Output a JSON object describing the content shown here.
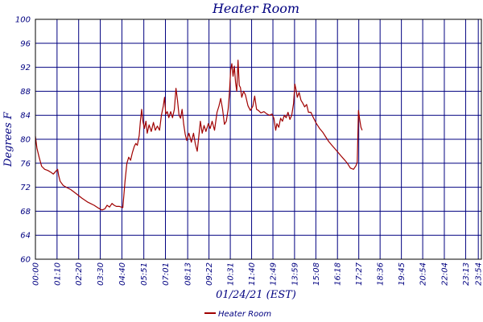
{
  "chart_data": {
    "type": "line",
    "title": "Heater Room",
    "xlabel": "01/24/21 (EST)",
    "ylabel": "Degrees F",
    "ylim": [
      60,
      100
    ],
    "yticks": [
      "60",
      "64",
      "68",
      "72",
      "76",
      "80",
      "84",
      "88",
      "92",
      "96",
      "100"
    ],
    "xlim_minutes": [
      0,
      1444
    ],
    "xticks": [
      {
        "label": "00:00",
        "minute": 0
      },
      {
        "label": "01:10",
        "minute": 70
      },
      {
        "label": "02:20",
        "minute": 140
      },
      {
        "label": "03:30",
        "minute": 210
      },
      {
        "label": "04:40",
        "minute": 280
      },
      {
        "label": "05:51",
        "minute": 351
      },
      {
        "label": "07:01",
        "minute": 421
      },
      {
        "label": "08:13",
        "minute": 493
      },
      {
        "label": "09:22",
        "minute": 562
      },
      {
        "label": "10:31",
        "minute": 631
      },
      {
        "label": "11:40",
        "minute": 700
      },
      {
        "label": "12:49",
        "minute": 769
      },
      {
        "label": "13:59",
        "minute": 839
      },
      {
        "label": "15:08",
        "minute": 908
      },
      {
        "label": "16:18",
        "minute": 978
      },
      {
        "label": "17:27",
        "minute": 1047
      },
      {
        "label": "18:36",
        "minute": 1116
      },
      {
        "label": "19:45",
        "minute": 1185
      },
      {
        "label": "20:54",
        "minute": 1254
      },
      {
        "label": "22:04",
        "minute": 1324
      },
      {
        "label": "23:13",
        "minute": 1393
      },
      {
        "label": "23:54",
        "minute": 1434
      }
    ],
    "grid": true,
    "legend": "bottom",
    "series": [
      {
        "name": "Heater Room",
        "color": "#a00000",
        "points": [
          [
            0,
            80.5
          ],
          [
            5,
            78.5
          ],
          [
            12,
            77
          ],
          [
            20,
            75.5
          ],
          [
            30,
            75
          ],
          [
            40,
            74.8
          ],
          [
            50,
            74.5
          ],
          [
            58,
            74.2
          ],
          [
            65,
            74.6
          ],
          [
            72,
            75
          ],
          [
            75,
            74
          ],
          [
            80,
            73
          ],
          [
            90,
            72.3
          ],
          [
            100,
            72
          ],
          [
            115,
            71.6
          ],
          [
            130,
            71
          ],
          [
            150,
            70.2
          ],
          [
            170,
            69.5
          ],
          [
            190,
            69
          ],
          [
            205,
            68.5
          ],
          [
            215,
            68.2
          ],
          [
            225,
            68.4
          ],
          [
            232,
            69
          ],
          [
            240,
            68.7
          ],
          [
            248,
            69.3
          ],
          [
            255,
            69
          ],
          [
            262,
            68.8
          ],
          [
            272,
            68.8
          ],
          [
            283,
            68.6
          ],
          [
            290,
            73
          ],
          [
            296,
            76
          ],
          [
            302,
            77
          ],
          [
            308,
            76.5
          ],
          [
            314,
            77.8
          ],
          [
            320,
            78.8
          ],
          [
            325,
            79.3
          ],
          [
            330,
            79
          ],
          [
            336,
            80.6
          ],
          [
            340,
            83
          ],
          [
            344,
            85
          ],
          [
            348,
            83
          ],
          [
            353,
            81.8
          ],
          [
            358,
            83
          ],
          [
            362,
            81
          ],
          [
            368,
            82.4
          ],
          [
            375,
            81.3
          ],
          [
            382,
            82.8
          ],
          [
            388,
            81.5
          ],
          [
            395,
            82.2
          ],
          [
            402,
            81.5
          ],
          [
            408,
            84
          ],
          [
            414,
            85.5
          ],
          [
            418,
            87
          ],
          [
            422,
            84.2
          ],
          [
            427,
            84.6
          ],
          [
            432,
            83.6
          ],
          [
            438,
            84.6
          ],
          [
            444,
            83.6
          ],
          [
            450,
            85
          ],
          [
            455,
            88.5
          ],
          [
            460,
            86.5
          ],
          [
            465,
            84
          ],
          [
            470,
            83.5
          ],
          [
            475,
            85
          ],
          [
            480,
            82.5
          ],
          [
            485,
            80.8
          ],
          [
            490,
            79.8
          ],
          [
            497,
            81
          ],
          [
            505,
            79.5
          ],
          [
            512,
            81
          ],
          [
            518,
            79.2
          ],
          [
            524,
            78
          ],
          [
            528,
            80
          ],
          [
            534,
            83
          ],
          [
            540,
            81
          ],
          [
            546,
            82.3
          ],
          [
            552,
            81.3
          ],
          [
            560,
            82.6
          ],
          [
            566,
            81.8
          ],
          [
            572,
            83
          ],
          [
            580,
            81.5
          ],
          [
            588,
            84.5
          ],
          [
            594,
            85.5
          ],
          [
            600,
            86.8
          ],
          [
            606,
            85
          ],
          [
            612,
            82.5
          ],
          [
            618,
            83
          ],
          [
            624,
            85
          ],
          [
            628,
            87.5
          ],
          [
            632,
            91.5
          ],
          [
            636,
            92.6
          ],
          [
            640,
            90.5
          ],
          [
            644,
            92.2
          ],
          [
            648,
            89.5
          ],
          [
            652,
            88
          ],
          [
            656,
            93.2
          ],
          [
            660,
            89
          ],
          [
            664,
            88.6
          ],
          [
            668,
            87
          ],
          [
            674,
            88
          ],
          [
            680,
            87.4
          ],
          [
            688,
            85.6
          ],
          [
            696,
            84.8
          ],
          [
            704,
            85.5
          ],
          [
            710,
            87.2
          ],
          [
            716,
            85
          ],
          [
            722,
            84.8
          ],
          [
            730,
            84.4
          ],
          [
            740,
            84.6
          ],
          [
            750,
            84.2
          ],
          [
            758,
            84
          ],
          [
            766,
            84.2
          ],
          [
            772,
            83.5
          ],
          [
            778,
            81.5
          ],
          [
            782,
            82.6
          ],
          [
            788,
            82
          ],
          [
            794,
            83.5
          ],
          [
            800,
            83
          ],
          [
            806,
            84
          ],
          [
            812,
            83.6
          ],
          [
            818,
            84.5
          ],
          [
            824,
            83.3
          ],
          [
            830,
            84
          ],
          [
            836,
            86
          ],
          [
            840,
            89.2
          ],
          [
            844,
            88.2
          ],
          [
            848,
            87
          ],
          [
            854,
            87.8
          ],
          [
            860,
            86.5
          ],
          [
            866,
            86
          ],
          [
            872,
            85.4
          ],
          [
            878,
            85.8
          ],
          [
            884,
            84.5
          ],
          [
            892,
            84.5
          ],
          [
            900,
            83.6
          ],
          [
            910,
            82.6
          ],
          [
            920,
            81.8
          ],
          [
            930,
            81.2
          ],
          [
            940,
            80.4
          ],
          [
            950,
            79.6
          ],
          [
            960,
            79
          ],
          [
            970,
            78.4
          ],
          [
            980,
            77.8
          ],
          [
            990,
            77.2
          ],
          [
            1000,
            76.6
          ],
          [
            1010,
            76
          ],
          [
            1020,
            75.2
          ],
          [
            1030,
            75
          ],
          [
            1038,
            75.6
          ],
          [
            1042,
            76.2
          ],
          [
            1046,
            84.8
          ],
          [
            1050,
            83.3
          ],
          [
            1054,
            82
          ],
          [
            1058,
            81.5
          ]
        ]
      }
    ]
  }
}
